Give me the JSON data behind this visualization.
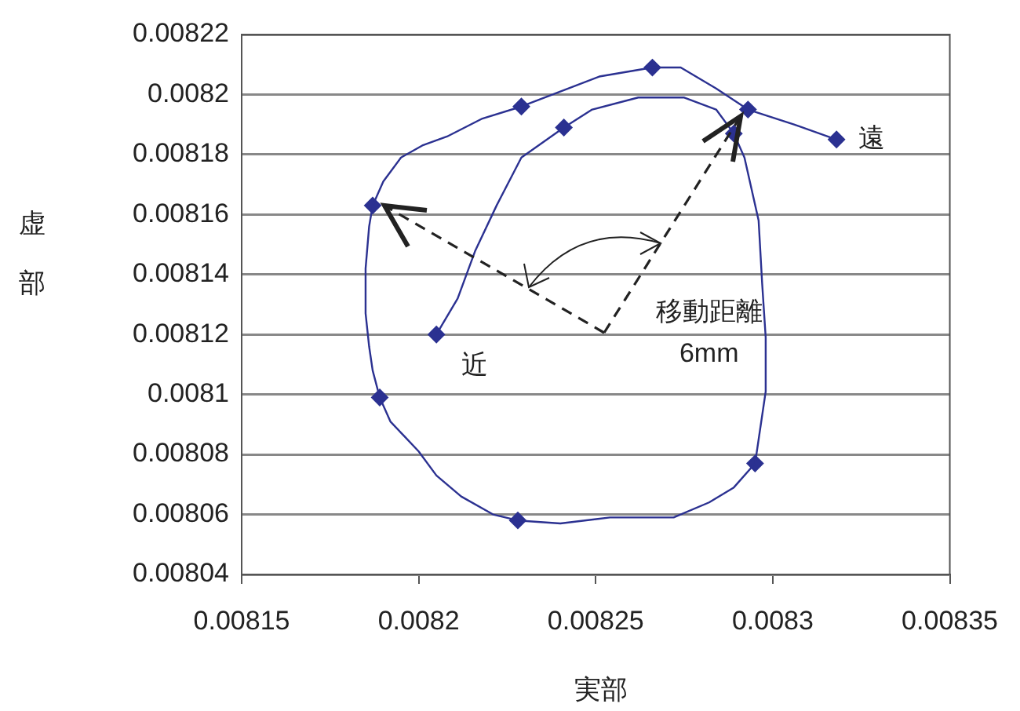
{
  "chart_data": {
    "type": "scatter",
    "xlabel": "実部",
    "ylabel": "虚部",
    "xlim": [
      0.00815,
      0.00835
    ],
    "xticks": [
      0.00815,
      0.0082,
      0.00825,
      0.0083,
      0.00835
    ],
    "ylim": [
      0.00804,
      0.00822
    ],
    "yticks": [
      0.00804,
      0.00806,
      0.00808,
      0.0081,
      0.00812,
      0.00814,
      0.00816,
      0.00818,
      0.0082,
      0.00822
    ],
    "grid": "y",
    "legend": false,
    "series": [
      {
        "type": "line",
        "marker": "none",
        "color": "#2b3191",
        "x": [
          0.008205,
          0.008211,
          0.008216,
          0.008222,
          0.008229,
          0.008241,
          0.008249,
          0.008262,
          0.008275,
          0.008284,
          0.008289,
          0.008292,
          0.008296,
          0.008297,
          0.008298,
          0.008298,
          0.008295,
          0.008289,
          0.008282,
          0.008272,
          0.008254,
          0.00824,
          0.008228,
          0.008221,
          0.008212,
          0.008205,
          0.0082,
          0.008196,
          0.008192,
          0.008189,
          0.008187,
          0.008186,
          0.008185,
          0.008185,
          0.008186,
          0.008187,
          0.00819,
          0.008195,
          0.008201,
          0.008208,
          0.008218,
          0.008229,
          0.00824,
          0.008251,
          0.008266,
          0.008274,
          0.008284,
          0.008293,
          0.008306,
          0.008318
        ],
        "values": [
          0.00812,
          0.008132,
          0.008148,
          0.008163,
          0.008179,
          0.008189,
          0.008195,
          0.008199,
          0.008199,
          0.008195,
          0.008187,
          0.008179,
          0.008158,
          0.008137,
          0.008119,
          0.008101,
          0.008077,
          0.008069,
          0.008064,
          0.008059,
          0.008059,
          0.008057,
          0.008058,
          0.00806,
          0.008066,
          0.008073,
          0.008081,
          0.008086,
          0.008091,
          0.008099,
          0.008108,
          0.008116,
          0.008127,
          0.008142,
          0.008156,
          0.008163,
          0.008171,
          0.008179,
          0.008183,
          0.008186,
          0.008192,
          0.008196,
          0.008201,
          0.008206,
          0.008209,
          0.008209,
          0.008202,
          0.008195,
          0.00819,
          0.008185
        ]
      },
      {
        "type": "scatter",
        "marker": "diamond",
        "color": "#2b3191",
        "x": [
          0.008205,
          0.008241,
          0.008289,
          0.008295,
          0.008228,
          0.008189,
          0.008187,
          0.008229,
          0.008266,
          0.008293,
          0.008318
        ],
        "values": [
          0.00812,
          0.008189,
          0.008187,
          0.008077,
          0.008058,
          0.008099,
          0.008163,
          0.008196,
          0.008209,
          0.008195,
          0.008185
        ]
      }
    ],
    "annotations": [
      {
        "text": "遠",
        "x": 0.008318,
        "y": 0.008185
      },
      {
        "text": "近",
        "x": 0.008205,
        "y": 0.00812
      },
      "移動距離\n6mm"
    ]
  }
}
